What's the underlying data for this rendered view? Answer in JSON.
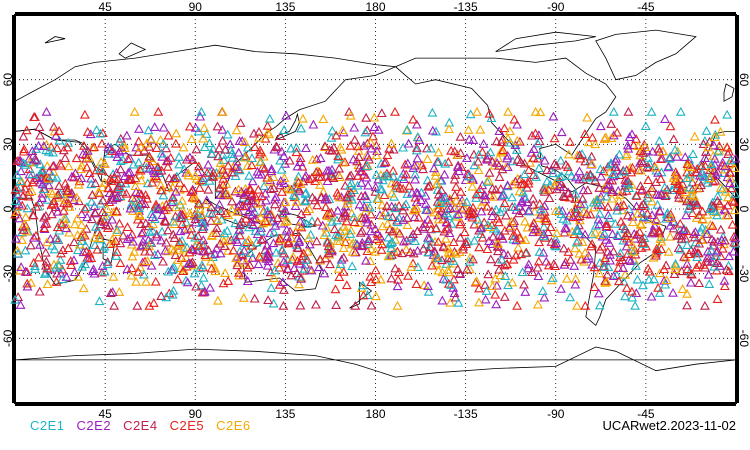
{
  "map": {
    "lon_labels_top": [
      "45",
      "90",
      "135",
      "180",
      "-135",
      "-90",
      "-45"
    ],
    "lon_labels_bottom": [
      "45",
      "90",
      "135",
      "180",
      "-135",
      "-90",
      "-45"
    ],
    "lat_labels": [
      "60",
      "30",
      "0",
      "-30",
      "-60"
    ],
    "lat_range": [
      -90,
      90
    ],
    "lon_range": [
      0,
      360
    ],
    "marker": "triangle",
    "occultation_lat_band": [
      -45,
      45
    ],
    "grid": "dotted"
  },
  "legend": {
    "items": [
      {
        "label": "C2E1",
        "color": "#1fb3c6"
      },
      {
        "label": "C2E2",
        "color": "#9b1fc0"
      },
      {
        "label": "C2E4",
        "color": "#c01f4a"
      },
      {
        "label": "C2E5",
        "color": "#e8201c"
      },
      {
        "label": "C2E6",
        "color": "#f5a800"
      }
    ]
  },
  "caption": "UCARwet2.2023-11-02"
}
